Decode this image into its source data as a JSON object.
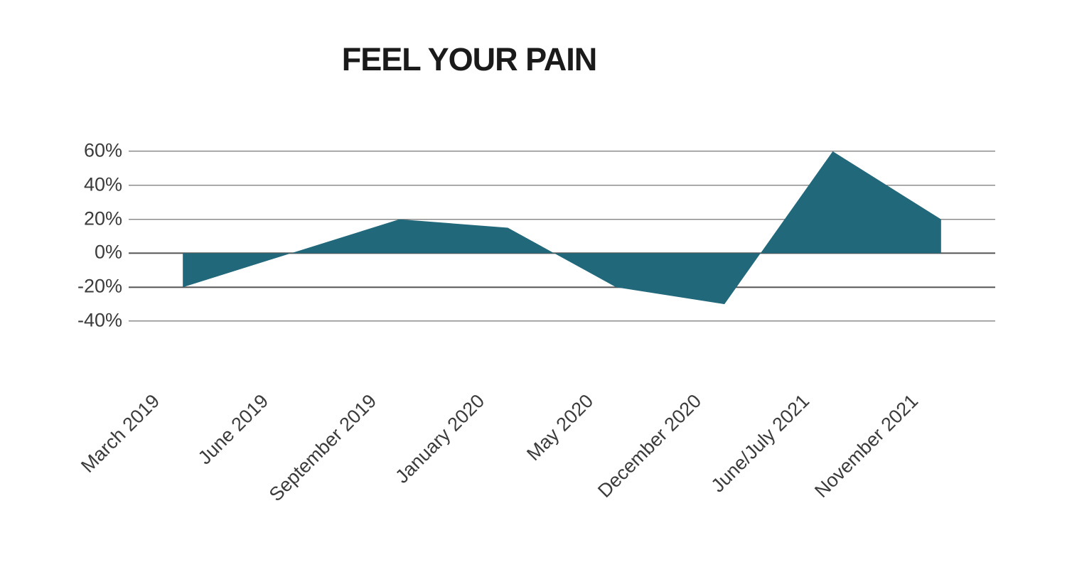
{
  "page": {
    "background": "#ffffff"
  },
  "chart_data": {
    "type": "area",
    "title": "FEEL YOUR PAIN",
    "categories": [
      "March 2019",
      "June 2019",
      "September 2019",
      "January 2020",
      "May 2020",
      "December 2020",
      "June/July 2021",
      "November 2021"
    ],
    "values": [
      -20,
      0,
      20,
      15,
      -20,
      -30,
      60,
      20
    ],
    "unit": "%",
    "xlabel": "",
    "ylabel": "",
    "ylim": [
      -40,
      60
    ],
    "yticks": [
      60,
      40,
      20,
      0,
      -20,
      -40
    ],
    "ytick_labels": [
      "60%",
      "40%",
      "20%",
      "0%",
      "-20%",
      "-40%"
    ],
    "baseline": 0,
    "grid": "horizontal-only",
    "legend": "none",
    "area_color": "#21687A",
    "gridline_color": "#555555",
    "label_color": "#3B3B3B",
    "title_color": "#1A1A1A"
  }
}
